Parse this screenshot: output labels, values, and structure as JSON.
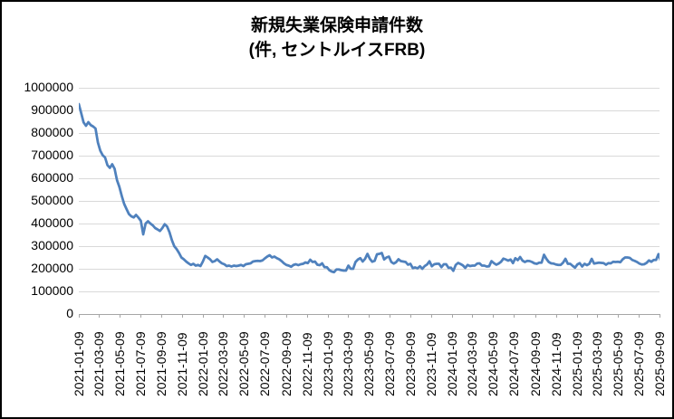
{
  "page": {
    "background": "#ffffff",
    "border_color": "#000000"
  },
  "title": {
    "line1": "新規失業保険申請件数",
    "line2": "(件, セントルイスFRB)"
  },
  "chart_data": {
    "type": "line",
    "title": "新規失業保険申請件数 (件, セントルイスFRB)",
    "series_name": "新規失業保険申請件数",
    "grid": "horizontal-major",
    "legend": "none",
    "line_color": "#4f81bd",
    "gridline_color": "#d9d9d9",
    "axis_color": "#a6a6a6",
    "label_color": "#000000",
    "ylim": [
      0,
      1000000
    ],
    "y_tick_labels": [
      "1000000",
      "900000",
      "800000",
      "700000",
      "600000",
      "500000",
      "400000",
      "300000",
      "200000",
      "100000",
      "0"
    ],
    "x_tick_labels": [
      "2021-01-09",
      "2021-03-09",
      "2021-05-09",
      "2021-07-09",
      "2021-09-09",
      "2021-11-09",
      "2022-01-09",
      "2022-03-09",
      "2022-05-09",
      "2022-07-09",
      "2022-09-09",
      "2022-11-09",
      "2023-01-09",
      "2023-03-09",
      "2023-05-09",
      "2023-07-09",
      "2023-09-09",
      "2023-11-09",
      "2024-01-09",
      "2024-03-09",
      "2024-05-09",
      "2024-07-09",
      "2024-09-09",
      "2024-11-09",
      "2025-01-09",
      "2025-03-09",
      "2025-05-09",
      "2025-07-09",
      "2025-09-09"
    ],
    "x_start_date": "2021-01-09",
    "x_axis_max": "2025-09-09",
    "frequency_days": 7,
    "values": [
      926000,
      886000,
      845000,
      830000,
      846000,
      833000,
      827000,
      818000,
      756000,
      720000,
      700000,
      690000,
      656000,
      644000,
      660000,
      640000,
      590000,
      560000,
      520000,
      485000,
      462000,
      440000,
      430000,
      425000,
      436000,
      424000,
      410000,
      350000,
      398000,
      408000,
      398000,
      390000,
      378000,
      372000,
      365000,
      378000,
      395000,
      385000,
      360000,
      325000,
      298000,
      285000,
      268000,
      248000,
      240000,
      230000,
      222000,
      215000,
      220000,
      212000,
      215000,
      210000,
      230000,
      255000,
      248000,
      240000,
      228000,
      232000,
      240000,
      230000,
      222000,
      218000,
      210000,
      212000,
      208000,
      212000,
      210000,
      212000,
      215000,
      210000,
      218000,
      220000,
      222000,
      230000,
      232000,
      233000,
      232000,
      235000,
      244000,
      252000,
      258000,
      248000,
      252000,
      245000,
      240000,
      232000,
      222000,
      215000,
      212000,
      207000,
      215000,
      218000,
      214000,
      218000,
      220000,
      226000,
      223000,
      238000,
      228000,
      230000,
      216000,
      214000,
      222000,
      205000,
      205000,
      192000,
      186000,
      183000,
      195000,
      195000,
      192000,
      190000,
      190000,
      212000,
      198000,
      198000,
      228000,
      239000,
      245000,
      230000,
      242000,
      264000,
      242000,
      229000,
      233000,
      262000,
      264000,
      268000,
      239000,
      248000,
      252000,
      228000,
      221000,
      227000,
      240000,
      232000,
      230000,
      228000,
      216000,
      220000,
      201000,
      204000,
      200000,
      209000,
      198000,
      210000,
      217000,
      231000,
      209000,
      218000,
      220000,
      220000,
      205000,
      218000,
      218000,
      202000,
      203000,
      189000,
      215000,
      224000,
      219000,
      213000,
      202000,
      215000,
      210000,
      212000,
      212000,
      221000,
      222000,
      212000,
      212000,
      208000,
      209000,
      232000,
      223000,
      216000,
      221000,
      229000,
      243000,
      239000,
      234000,
      239000,
      223000,
      245000,
      236000,
      250000,
      234000,
      228000,
      233000,
      232000,
      228000,
      222000,
      220000,
      225000,
      225000,
      260000,
      242000,
      228000,
      222000,
      221000,
      217000,
      215000,
      215000,
      225000,
      242000,
      220000,
      220000,
      211000,
      203000,
      217000,
      223000,
      208000,
      220000,
      214000,
      220000,
      242000,
      221000,
      223000,
      225000,
      224000,
      223000,
      216000,
      223000,
      222000,
      229000,
      228000,
      229000,
      227000,
      240000,
      248000,
      248000,
      246000,
      237000,
      233000,
      228000,
      221000,
      217000,
      218000,
      224000,
      235000,
      229000,
      237000,
      237000,
      263000,
      231000
    ]
  }
}
